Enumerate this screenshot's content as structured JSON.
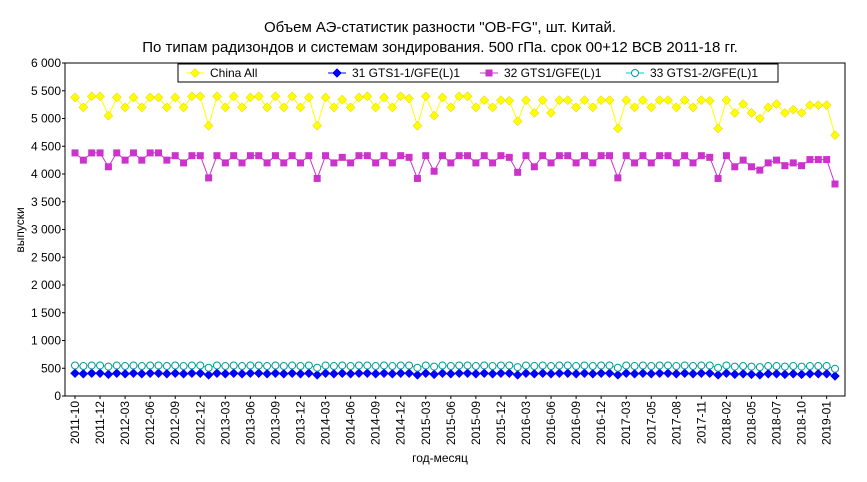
{
  "chart_data": {
    "type": "line",
    "title": "Объем АЭ-статистик разности \"OB-FG\", шт. Китай.",
    "subtitle": "По типам радизондов и системам зондирования. 500 гПа. срок 00+12 ВСВ 2011-18 гг.",
    "x_label": "год-месяц",
    "y_label": "выпуски",
    "categories": [
      "2011-10",
      null,
      null,
      "2011-12",
      null,
      null,
      "2012-03",
      null,
      null,
      "2012-06",
      null,
      null,
      "2012-09",
      null,
      null,
      "2012-12",
      null,
      null,
      "2013-03",
      null,
      null,
      "2013-06",
      null,
      null,
      "2013-09",
      null,
      null,
      "2013-12",
      null,
      null,
      "2014-03",
      null,
      null,
      "2014-06",
      null,
      null,
      "2014-09",
      null,
      null,
      "2014-12",
      null,
      null,
      "2015-03",
      null,
      null,
      "2015-06",
      null,
      null,
      "2015-09",
      null,
      null,
      "2015-12",
      null,
      null,
      "2016-03",
      null,
      null,
      "2016-06",
      null,
      null,
      "2016-09",
      null,
      null,
      "2016-12",
      null,
      null,
      "2017-03",
      null,
      null,
      "2017-05",
      null,
      null,
      "2017-08",
      null,
      null,
      "2017-11",
      null,
      null,
      "2018-02",
      null,
      null,
      "2018-05",
      null,
      null,
      "2018-07",
      null,
      null,
      "2018-10",
      null,
      null,
      "2019-01",
      null
    ],
    "series": [
      {
        "name": "China All",
        "color": "#ffff00",
        "marker": "diamond",
        "values": [
          5380,
          5200,
          5400,
          5400,
          5050,
          5380,
          5200,
          5380,
          5200,
          5380,
          5380,
          5200,
          5380,
          5200,
          5400,
          5400,
          4870,
          5400,
          5200,
          5400,
          5200,
          5380,
          5400,
          5200,
          5400,
          5200,
          5400,
          5200,
          5380,
          4870,
          5380,
          5200,
          5340,
          5200,
          5380,
          5400,
          5200,
          5380,
          5200,
          5400,
          5360,
          4870,
          5400,
          5050,
          5380,
          5200,
          5400,
          5400,
          5200,
          5330,
          5200,
          5330,
          5320,
          4950,
          5330,
          5100,
          5330,
          5100,
          5330,
          5330,
          5200,
          5330,
          5200,
          5330,
          5330,
          4820,
          5330,
          5200,
          5330,
          5200,
          5330,
          5330,
          5200,
          5330,
          5200,
          5330,
          5320,
          4820,
          5330,
          5100,
          5260,
          5100,
          5000,
          5200,
          5260,
          5100,
          5160,
          5100,
          5240,
          5240,
          5240,
          4700
        ]
      },
      {
        "name": "31 GTS1-1/GFE(L)1",
        "color": "#0000ff",
        "marker": "diamond",
        "values": [
          410,
          400,
          410,
          410,
          390,
          410,
          400,
          410,
          400,
          410,
          410,
          400,
          410,
          400,
          410,
          410,
          380,
          410,
          400,
          410,
          400,
          410,
          410,
          400,
          410,
          400,
          410,
          400,
          410,
          380,
          410,
          400,
          410,
          400,
          410,
          410,
          400,
          410,
          400,
          410,
          410,
          380,
          410,
          390,
          410,
          400,
          410,
          410,
          400,
          410,
          400,
          410,
          410,
          380,
          410,
          400,
          410,
          400,
          410,
          410,
          400,
          410,
          400,
          410,
          410,
          380,
          410,
          400,
          410,
          400,
          410,
          410,
          400,
          410,
          400,
          410,
          410,
          380,
          410,
          390,
          400,
          390,
          380,
          400,
          400,
          390,
          400,
          390,
          400,
          400,
          400,
          360
        ]
      },
      {
        "name": "32 GTS1/GFE(L)1",
        "color": "#cc33cc",
        "marker": "square",
        "values": [
          4380,
          4250,
          4380,
          4380,
          4130,
          4380,
          4250,
          4380,
          4250,
          4380,
          4380,
          4250,
          4330,
          4200,
          4330,
          4330,
          3930,
          4330,
          4200,
          4330,
          4200,
          4330,
          4330,
          4200,
          4330,
          4200,
          4330,
          4200,
          4330,
          3920,
          4330,
          4200,
          4300,
          4200,
          4330,
          4330,
          4200,
          4330,
          4200,
          4330,
          4300,
          3920,
          4330,
          4050,
          4330,
          4200,
          4330,
          4330,
          4200,
          4330,
          4200,
          4330,
          4300,
          4030,
          4330,
          4130,
          4330,
          4200,
          4330,
          4330,
          4200,
          4330,
          4200,
          4330,
          4330,
          3930,
          4330,
          4200,
          4330,
          4200,
          4330,
          4330,
          4200,
          4330,
          4200,
          4330,
          4300,
          3920,
          4330,
          4130,
          4250,
          4130,
          4070,
          4200,
          4250,
          4150,
          4200,
          4150,
          4260,
          4260,
          4260,
          3820
        ]
      },
      {
        "name": "33 GTS1-2/GFE(L)1",
        "color": "#00ffff",
        "marker": "circle",
        "values": [
          550,
          540,
          550,
          550,
          530,
          550,
          540,
          550,
          540,
          550,
          550,
          540,
          550,
          540,
          550,
          550,
          510,
          550,
          540,
          550,
          540,
          550,
          550,
          540,
          550,
          540,
          550,
          540,
          550,
          510,
          550,
          540,
          550,
          540,
          550,
          550,
          540,
          550,
          540,
          550,
          550,
          510,
          550,
          530,
          550,
          540,
          550,
          550,
          540,
          550,
          540,
          550,
          550,
          520,
          550,
          540,
          550,
          540,
          550,
          550,
          540,
          550,
          540,
          550,
          550,
          510,
          550,
          540,
          550,
          540,
          550,
          550,
          540,
          550,
          540,
          550,
          550,
          510,
          550,
          530,
          540,
          530,
          520,
          540,
          540,
          530,
          540,
          530,
          540,
          540,
          540,
          490
        ]
      }
    ],
    "ylim": [
      0,
      6000
    ],
    "yticks": [
      0,
      500,
      {
        "value": 1000,
        "label": "1 000"
      },
      {
        "value": 1500,
        "label": "1 500"
      },
      {
        "value": 2000,
        "label": "2 000"
      },
      {
        "value": 2500,
        "label": "2 500"
      },
      {
        "value": 3000,
        "label": "3 000"
      },
      {
        "value": 3500,
        "label": "3 500"
      },
      {
        "value": 4000,
        "label": "4 000"
      },
      {
        "value": 4500,
        "label": "4 500"
      },
      {
        "value": 5000,
        "label": "5 000"
      },
      {
        "value": 5500,
        "label": "5 500"
      },
      {
        "value": 6000,
        "label": "6 000"
      }
    ],
    "grid": false,
    "legend": "top"
  }
}
